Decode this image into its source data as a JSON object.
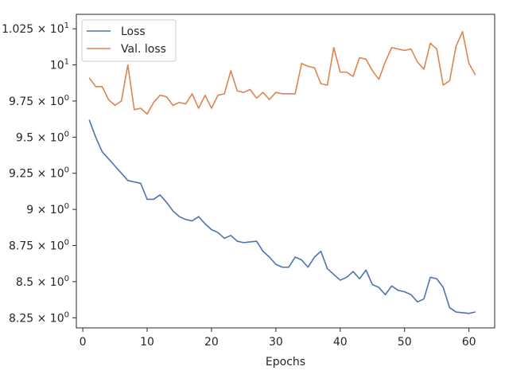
{
  "chart_data": {
    "type": "line",
    "title": "",
    "xlabel": "Epochs",
    "ylabel": "",
    "xlim": [
      -1,
      64
    ],
    "ylim": [
      8.18,
      10.35
    ],
    "xticks": [
      {
        "value": 0,
        "label": "0"
      },
      {
        "value": 10,
        "label": "10"
      },
      {
        "value": 20,
        "label": "20"
      },
      {
        "value": 30,
        "label": "30"
      },
      {
        "value": 40,
        "label": "40"
      },
      {
        "value": 50,
        "label": "50"
      },
      {
        "value": 60,
        "label": "60"
      }
    ],
    "yticks": [
      {
        "value": 8.25,
        "base": "8.25 × 10",
        "exp": "0"
      },
      {
        "value": 8.5,
        "base": "8.5 × 10",
        "exp": "0"
      },
      {
        "value": 8.75,
        "base": "8.75 × 10",
        "exp": "0"
      },
      {
        "value": 9.0,
        "base": "9 × 10",
        "exp": "0"
      },
      {
        "value": 9.25,
        "base": "9.25 × 10",
        "exp": "0"
      },
      {
        "value": 9.5,
        "base": "9.5 × 10",
        "exp": "0"
      },
      {
        "value": 9.75,
        "base": "9.75 × 10",
        "exp": "0"
      },
      {
        "value": 10.0,
        "base": "10",
        "exp": "1"
      },
      {
        "value": 10.25,
        "base": "1.025 × 10",
        "exp": "1"
      }
    ],
    "grid": false,
    "legend_position": "top-left",
    "x": [
      1,
      2,
      3,
      4,
      5,
      6,
      7,
      8,
      9,
      10,
      11,
      12,
      13,
      14,
      15,
      16,
      17,
      18,
      19,
      20,
      21,
      22,
      23,
      24,
      25,
      26,
      27,
      28,
      29,
      30,
      31,
      32,
      33,
      34,
      35,
      36,
      37,
      38,
      39,
      40,
      41,
      42,
      43,
      44,
      45,
      46,
      47,
      48,
      49,
      50,
      51,
      52,
      53,
      54,
      55,
      56,
      57,
      58,
      59,
      60,
      61
    ],
    "series": [
      {
        "name": "Loss",
        "color": "#4c72b0",
        "values": [
          9.62,
          9.5,
          9.4,
          9.35,
          9.3,
          9.25,
          9.2,
          9.19,
          9.18,
          9.07,
          9.07,
          9.1,
          9.05,
          8.99,
          8.95,
          8.93,
          8.92,
          8.95,
          8.9,
          8.86,
          8.84,
          8.8,
          8.82,
          8.78,
          8.77,
          8.775,
          8.78,
          8.71,
          8.67,
          8.62,
          8.6,
          8.6,
          8.67,
          8.65,
          8.6,
          8.67,
          8.71,
          8.59,
          8.55,
          8.51,
          8.53,
          8.57,
          8.52,
          8.58,
          8.48,
          8.46,
          8.41,
          8.47,
          8.44,
          8.43,
          8.41,
          8.36,
          8.38,
          8.53,
          8.52,
          8.46,
          8.32,
          8.29,
          8.285,
          8.28,
          8.29
        ]
      },
      {
        "name": "Val. loss",
        "color": "#dd8452",
        "values": [
          9.91,
          9.85,
          9.85,
          9.76,
          9.72,
          9.75,
          10.0,
          9.69,
          9.7,
          9.66,
          9.74,
          9.79,
          9.78,
          9.72,
          9.74,
          9.73,
          9.8,
          9.7,
          9.79,
          9.7,
          9.79,
          9.8,
          9.96,
          9.82,
          9.81,
          9.83,
          9.77,
          9.81,
          9.76,
          9.81,
          9.8,
          9.8,
          9.8,
          10.01,
          9.99,
          9.98,
          9.87,
          9.86,
          10.12,
          9.95,
          9.95,
          9.92,
          10.05,
          10.04,
          9.96,
          9.9,
          10.02,
          10.12,
          10.11,
          10.1,
          10.11,
          10.02,
          9.97,
          10.15,
          10.11,
          9.86,
          9.89,
          10.13,
          10.23,
          10.01,
          9.93
        ]
      }
    ]
  }
}
